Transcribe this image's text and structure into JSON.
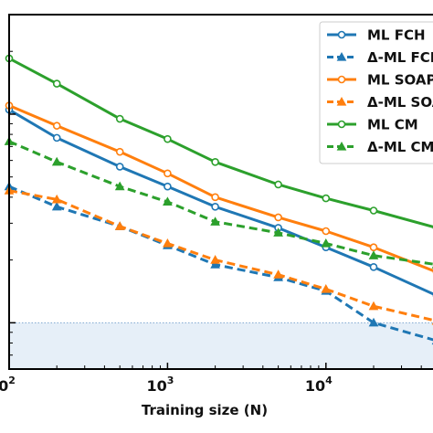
{
  "chart_data": {
    "type": "line",
    "xlabel": "Training size (N)",
    "xscale": "log",
    "xlim": [
      100,
      50000
    ],
    "xticks": [
      {
        "value": 100,
        "base": "10",
        "exp": "2"
      },
      {
        "value": 1000,
        "base": "10",
        "exp": "3"
      },
      {
        "value": 10000,
        "base": "10",
        "exp": "4"
      }
    ],
    "yscale": "log",
    "ylim": [
      0.6,
      30
    ],
    "threshold": 1.0,
    "grid": false,
    "legend_position": "top-right",
    "x": [
      100,
      200,
      500,
      1000,
      2000,
      5000,
      10000,
      20000,
      50000
    ],
    "series": [
      {
        "name": "ML FCH",
        "color": "#1f77b4",
        "linestyle": "solid",
        "marker": "circle",
        "values": [
          10.5,
          7.7,
          5.6,
          4.5,
          3.6,
          2.85,
          2.3,
          1.85,
          1.35
        ]
      },
      {
        "name": "Δ-ML FCH",
        "color": "#1f77b4",
        "linestyle": "dashed",
        "marker": "triangle",
        "values": [
          4.5,
          3.6,
          2.9,
          2.35,
          1.9,
          1.65,
          1.42,
          1.0,
          0.82
        ]
      },
      {
        "name": "ML SOAP",
        "color": "#ff7f0e",
        "linestyle": "solid",
        "marker": "circle",
        "values": [
          11.0,
          8.8,
          6.6,
          5.2,
          4.0,
          3.2,
          2.75,
          2.3,
          1.75
        ]
      },
      {
        "name": "Δ-ML SOAP",
        "color": "#ff7f0e",
        "linestyle": "dashed",
        "marker": "triangle",
        "values": [
          4.3,
          3.9,
          2.9,
          2.4,
          2.0,
          1.7,
          1.45,
          1.2,
          1.02
        ]
      },
      {
        "name": "ML CM",
        "color": "#2ca02c",
        "linestyle": "solid",
        "marker": "circle",
        "values": [
          18.5,
          14.0,
          9.5,
          7.6,
          5.9,
          4.6,
          3.95,
          3.45,
          2.85
        ]
      },
      {
        "name": "Δ-ML CM",
        "color": "#2ca02c",
        "linestyle": "dashed",
        "marker": "triangle",
        "values": [
          7.4,
          5.9,
          4.5,
          3.8,
          3.05,
          2.7,
          2.4,
          2.1,
          1.9
        ]
      }
    ]
  }
}
